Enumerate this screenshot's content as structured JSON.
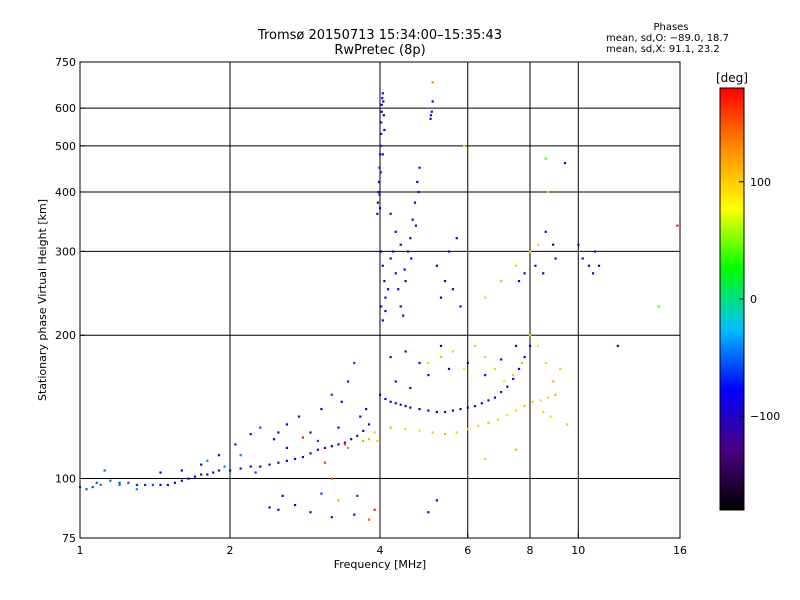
{
  "header": {
    "title_line1": "Tromsø 20150713 15:34:00–15:35:43",
    "title_line2": "RwPretec (8p)"
  },
  "phase_stats": {
    "heading": "Phases",
    "line_o": "mean, sd,O: −89.0, 18.7",
    "line_x": "mean, sd,X:  91.1, 23.2"
  },
  "colorbar": {
    "unit_label": "[deg]",
    "range": [
      -180,
      180
    ],
    "ticks": [
      {
        "value": 100,
        "label": "100"
      },
      {
        "value": 0,
        "label": "0"
      },
      {
        "value": -100,
        "label": "−100"
      }
    ],
    "colors": [
      "#000000",
      "#4b0082",
      "#0000ff",
      "#00bfff",
      "#00ff00",
      "#ffff00",
      "#ff8c00",
      "#ff0000"
    ]
  },
  "chart_data": {
    "type": "scatter",
    "xlabel": "Frequency [MHz]",
    "ylabel": "Stationary phase Virtual Height [km]",
    "xscale": "log",
    "yscale": "log",
    "xlim": [
      1,
      16
    ],
    "ylim": [
      75,
      750
    ],
    "grid": true,
    "xticks": [
      {
        "value": 1,
        "label": "1"
      },
      {
        "value": 2,
        "label": "2"
      },
      {
        "value": 4,
        "label": "4"
      },
      {
        "value": 6,
        "label": "6"
      },
      {
        "value": 8,
        "label": "8"
      },
      {
        "value": 10,
        "label": "10"
      },
      {
        "value": 16,
        "label": "16"
      }
    ],
    "yticks": [
      {
        "value": 75,
        "label": "75"
      },
      {
        "value": 100,
        "label": "100"
      },
      {
        "value": 200,
        "label": "200"
      },
      {
        "value": 300,
        "label": "300"
      },
      {
        "value": 400,
        "label": "400"
      },
      {
        "value": 500,
        "label": "500"
      },
      {
        "value": 600,
        "label": "600"
      },
      {
        "value": 750,
        "label": "750"
      }
    ],
    "grid_x": [
      2,
      4,
      6,
      8,
      10
    ],
    "grid_y": [
      100,
      200,
      300,
      400,
      500,
      600
    ],
    "points": [
      {
        "x": 1.0,
        "y": 96,
        "p": -50
      },
      {
        "x": 1.03,
        "y": 95,
        "p": -55
      },
      {
        "x": 1.06,
        "y": 96,
        "p": -60
      },
      {
        "x": 1.1,
        "y": 97,
        "p": -45
      },
      {
        "x": 1.15,
        "y": 99,
        "p": -50
      },
      {
        "x": 1.2,
        "y": 98,
        "p": -60
      },
      {
        "x": 1.25,
        "y": 98,
        "p": -55
      },
      {
        "x": 1.3,
        "y": 97,
        "p": -65
      },
      {
        "x": 1.35,
        "y": 97,
        "p": -70
      },
      {
        "x": 1.4,
        "y": 97,
        "p": -60
      },
      {
        "x": 1.45,
        "y": 97,
        "p": -80
      },
      {
        "x": 1.5,
        "y": 97,
        "p": -85
      },
      {
        "x": 1.55,
        "y": 98,
        "p": -90
      },
      {
        "x": 1.6,
        "y": 99,
        "p": -90
      },
      {
        "x": 1.65,
        "y": 100,
        "p": -95
      },
      {
        "x": 1.7,
        "y": 101,
        "p": -90
      },
      {
        "x": 1.75,
        "y": 102,
        "p": -95
      },
      {
        "x": 1.8,
        "y": 102,
        "p": -90
      },
      {
        "x": 1.85,
        "y": 103,
        "p": -90
      },
      {
        "x": 1.9,
        "y": 104,
        "p": -95
      },
      {
        "x": 2.0,
        "y": 104,
        "p": -90
      },
      {
        "x": 2.1,
        "y": 105,
        "p": -95
      },
      {
        "x": 2.2,
        "y": 106,
        "p": -90
      },
      {
        "x": 2.3,
        "y": 106,
        "p": -95
      },
      {
        "x": 2.4,
        "y": 107,
        "p": -90
      },
      {
        "x": 2.5,
        "y": 108,
        "p": -95
      },
      {
        "x": 2.6,
        "y": 109,
        "p": -90
      },
      {
        "x": 2.7,
        "y": 110,
        "p": -90
      },
      {
        "x": 2.8,
        "y": 111,
        "p": -95
      },
      {
        "x": 2.9,
        "y": 113,
        "p": -90
      },
      {
        "x": 3.0,
        "y": 115,
        "p": -95
      },
      {
        "x": 3.1,
        "y": 116,
        "p": -90
      },
      {
        "x": 3.2,
        "y": 117,
        "p": -95
      },
      {
        "x": 3.3,
        "y": 118,
        "p": -90
      },
      {
        "x": 3.4,
        "y": 119,
        "p": -90
      },
      {
        "x": 3.5,
        "y": 121,
        "p": -95
      },
      {
        "x": 3.6,
        "y": 123,
        "p": -90
      },
      {
        "x": 3.7,
        "y": 126,
        "p": -95
      },
      {
        "x": 3.8,
        "y": 130,
        "p": -90
      },
      {
        "x": 1.12,
        "y": 104,
        "p": -50
      },
      {
        "x": 1.45,
        "y": 103,
        "p": -90
      },
      {
        "x": 1.6,
        "y": 104,
        "p": -85
      },
      {
        "x": 1.75,
        "y": 107,
        "p": -90
      },
      {
        "x": 1.9,
        "y": 112,
        "p": -90
      },
      {
        "x": 2.05,
        "y": 118,
        "p": -70
      },
      {
        "x": 2.2,
        "y": 124,
        "p": -90
      },
      {
        "x": 2.3,
        "y": 128,
        "p": -60
      },
      {
        "x": 2.45,
        "y": 121,
        "p": -90
      },
      {
        "x": 2.6,
        "y": 130,
        "p": -80
      },
      {
        "x": 2.75,
        "y": 135,
        "p": -90
      },
      {
        "x": 2.9,
        "y": 125,
        "p": -110
      },
      {
        "x": 3.05,
        "y": 140,
        "p": -90
      },
      {
        "x": 3.2,
        "y": 150,
        "p": -60
      },
      {
        "x": 3.35,
        "y": 145,
        "p": -90
      },
      {
        "x": 3.45,
        "y": 160,
        "p": -70
      },
      {
        "x": 3.55,
        "y": 175,
        "p": -60
      },
      {
        "x": 3.65,
        "y": 135,
        "p": -90
      },
      {
        "x": 3.75,
        "y": 140,
        "p": -95
      },
      {
        "x": 2.4,
        "y": 87,
        "p": -90
      },
      {
        "x": 2.5,
        "y": 86,
        "p": -90
      },
      {
        "x": 2.7,
        "y": 88,
        "p": -90
      },
      {
        "x": 2.9,
        "y": 85,
        "p": -95
      },
      {
        "x": 3.2,
        "y": 83,
        "p": -90
      },
      {
        "x": 3.3,
        "y": 90,
        "p": 120
      },
      {
        "x": 3.55,
        "y": 84,
        "p": -100
      },
      {
        "x": 3.8,
        "y": 82,
        "p": 150
      },
      {
        "x": 2.55,
        "y": 92,
        "p": -90
      },
      {
        "x": 3.05,
        "y": 93,
        "p": -60
      },
      {
        "x": 3.4,
        "y": 118,
        "p": 150
      },
      {
        "x": 3.45,
        "y": 116,
        "p": 130
      },
      {
        "x": 3.7,
        "y": 120,
        "p": 120
      },
      {
        "x": 3.8,
        "y": 121,
        "p": 110
      },
      {
        "x": 3.9,
        "y": 125,
        "p": 100
      },
      {
        "x": 3.95,
        "y": 120,
        "p": 100
      },
      {
        "x": 3.1,
        "y": 108,
        "p": 160
      },
      {
        "x": 3.2,
        "y": 100,
        "p": 150
      },
      {
        "x": 3.95,
        "y": 360,
        "p": -90
      },
      {
        "x": 3.96,
        "y": 380,
        "p": -90
      },
      {
        "x": 3.97,
        "y": 400,
        "p": -95
      },
      {
        "x": 3.98,
        "y": 420,
        "p": -90
      },
      {
        "x": 3.99,
        "y": 450,
        "p": -90
      },
      {
        "x": 4.0,
        "y": 480,
        "p": -95
      },
      {
        "x": 4.01,
        "y": 500,
        "p": -90
      },
      {
        "x": 4.02,
        "y": 530,
        "p": -90
      },
      {
        "x": 4.02,
        "y": 560,
        "p": -95
      },
      {
        "x": 4.03,
        "y": 590,
        "p": -90
      },
      {
        "x": 4.03,
        "y": 610,
        "p": -90
      },
      {
        "x": 4.04,
        "y": 630,
        "p": -95
      },
      {
        "x": 4.05,
        "y": 645,
        "p": -90
      },
      {
        "x": 4.06,
        "y": 620,
        "p": -90
      },
      {
        "x": 4.07,
        "y": 580,
        "p": -90
      },
      {
        "x": 4.08,
        "y": 540,
        "p": -95
      },
      {
        "x": 4.05,
        "y": 480,
        "p": -90
      },
      {
        "x": 4.01,
        "y": 440,
        "p": -90
      },
      {
        "x": 3.99,
        "y": 395,
        "p": -95
      },
      {
        "x": 4.0,
        "y": 370,
        "p": -90
      },
      {
        "x": 4.02,
        "y": 300,
        "p": -90
      },
      {
        "x": 4.05,
        "y": 280,
        "p": -95
      },
      {
        "x": 4.08,
        "y": 260,
        "p": -90
      },
      {
        "x": 4.1,
        "y": 240,
        "p": -90
      },
      {
        "x": 4.02,
        "y": 230,
        "p": -95
      },
      {
        "x": 4.05,
        "y": 215,
        "p": -90
      },
      {
        "x": 4.1,
        "y": 225,
        "p": -90
      },
      {
        "x": 4.15,
        "y": 250,
        "p": -95
      },
      {
        "x": 4.2,
        "y": 290,
        "p": -90
      },
      {
        "x": 4.25,
        "y": 300,
        "p": -90
      },
      {
        "x": 4.3,
        "y": 270,
        "p": -95
      },
      {
        "x": 4.35,
        "y": 250,
        "p": -90
      },
      {
        "x": 4.4,
        "y": 230,
        "p": -90
      },
      {
        "x": 4.45,
        "y": 220,
        "p": -95
      },
      {
        "x": 4.5,
        "y": 260,
        "p": -90
      },
      {
        "x": 4.55,
        "y": 300,
        "p": -90
      },
      {
        "x": 4.6,
        "y": 320,
        "p": -95
      },
      {
        "x": 4.65,
        "y": 350,
        "p": -90
      },
      {
        "x": 4.7,
        "y": 380,
        "p": -90
      },
      {
        "x": 4.75,
        "y": 420,
        "p": -95
      },
      {
        "x": 4.8,
        "y": 450,
        "p": -90
      },
      {
        "x": 4.78,
        "y": 400,
        "p": -90
      },
      {
        "x": 4.72,
        "y": 340,
        "p": -95
      },
      {
        "x": 4.62,
        "y": 290,
        "p": -90
      },
      {
        "x": 4.48,
        "y": 275,
        "p": -90
      },
      {
        "x": 4.3,
        "y": 330,
        "p": -95
      },
      {
        "x": 4.2,
        "y": 360,
        "p": -90
      },
      {
        "x": 4.4,
        "y": 310,
        "p": -90
      },
      {
        "x": 5.05,
        "y": 570,
        "p": -90
      },
      {
        "x": 5.08,
        "y": 590,
        "p": -95
      },
      {
        "x": 5.1,
        "y": 620,
        "p": -90
      },
      {
        "x": 5.06,
        "y": 580,
        "p": -90
      },
      {
        "x": 5.2,
        "y": 280,
        "p": -90
      },
      {
        "x": 5.3,
        "y": 240,
        "p": -95
      },
      {
        "x": 5.4,
        "y": 260,
        "p": -90
      },
      {
        "x": 5.6,
        "y": 250,
        "p": -90
      },
      {
        "x": 5.8,
        "y": 230,
        "p": -95
      },
      {
        "x": 5.5,
        "y": 300,
        "p": -90
      },
      {
        "x": 5.7,
        "y": 320,
        "p": -90
      },
      {
        "x": 4.0,
        "y": 150,
        "p": -90
      },
      {
        "x": 4.1,
        "y": 147,
        "p": -95
      },
      {
        "x": 4.2,
        "y": 145,
        "p": -90
      },
      {
        "x": 4.3,
        "y": 144,
        "p": -90
      },
      {
        "x": 4.4,
        "y": 143,
        "p": -95
      },
      {
        "x": 4.5,
        "y": 142,
        "p": -90
      },
      {
        "x": 4.6,
        "y": 141,
        "p": -90
      },
      {
        "x": 4.8,
        "y": 140,
        "p": -95
      },
      {
        "x": 5.0,
        "y": 139,
        "p": -90
      },
      {
        "x": 5.2,
        "y": 138,
        "p": -90
      },
      {
        "x": 5.4,
        "y": 138,
        "p": -95
      },
      {
        "x": 5.6,
        "y": 139,
        "p": -90
      },
      {
        "x": 5.8,
        "y": 140,
        "p": -90
      },
      {
        "x": 6.0,
        "y": 141,
        "p": -95
      },
      {
        "x": 6.2,
        "y": 142,
        "p": -90
      },
      {
        "x": 6.4,
        "y": 144,
        "p": -90
      },
      {
        "x": 6.6,
        "y": 146,
        "p": -95
      },
      {
        "x": 6.8,
        "y": 148,
        "p": -90
      },
      {
        "x": 7.0,
        "y": 152,
        "p": -90
      },
      {
        "x": 7.2,
        "y": 156,
        "p": -95
      },
      {
        "x": 7.4,
        "y": 162,
        "p": -90
      },
      {
        "x": 7.6,
        "y": 170,
        "p": -90
      },
      {
        "x": 7.8,
        "y": 180,
        "p": -95
      },
      {
        "x": 8.0,
        "y": 190,
        "p": -90
      },
      {
        "x": 4.3,
        "y": 160,
        "p": -90
      },
      {
        "x": 4.6,
        "y": 155,
        "p": -95
      },
      {
        "x": 5.0,
        "y": 165,
        "p": -90
      },
      {
        "x": 5.5,
        "y": 170,
        "p": -90
      },
      {
        "x": 6.0,
        "y": 175,
        "p": -95
      },
      {
        "x": 6.5,
        "y": 165,
        "p": -90
      },
      {
        "x": 7.0,
        "y": 178,
        "p": -90
      },
      {
        "x": 7.5,
        "y": 190,
        "p": -95
      },
      {
        "x": 4.2,
        "y": 180,
        "p": -90
      },
      {
        "x": 4.5,
        "y": 185,
        "p": -90
      },
      {
        "x": 4.8,
        "y": 175,
        "p": -95
      },
      {
        "x": 5.3,
        "y": 190,
        "p": -90
      },
      {
        "x": 4.2,
        "y": 128,
        "p": 110
      },
      {
        "x": 4.5,
        "y": 127,
        "p": 100
      },
      {
        "x": 4.8,
        "y": 126,
        "p": 90
      },
      {
        "x": 5.1,
        "y": 125,
        "p": 100
      },
      {
        "x": 5.4,
        "y": 124,
        "p": 110
      },
      {
        "x": 5.7,
        "y": 125,
        "p": 100
      },
      {
        "x": 6.0,
        "y": 127,
        "p": 90
      },
      {
        "x": 6.3,
        "y": 129,
        "p": 100
      },
      {
        "x": 6.6,
        "y": 131,
        "p": 110
      },
      {
        "x": 6.9,
        "y": 133,
        "p": 100
      },
      {
        "x": 7.2,
        "y": 136,
        "p": 90
      },
      {
        "x": 7.5,
        "y": 139,
        "p": 100
      },
      {
        "x": 7.8,
        "y": 142,
        "p": 110
      },
      {
        "x": 8.1,
        "y": 145,
        "p": 100
      },
      {
        "x": 8.4,
        "y": 146,
        "p": 90
      },
      {
        "x": 8.7,
        "y": 148,
        "p": 100
      },
      {
        "x": 9.0,
        "y": 150,
        "p": 110
      },
      {
        "x": 8.5,
        "y": 138,
        "p": 100
      },
      {
        "x": 8.8,
        "y": 135,
        "p": 90
      },
      {
        "x": 5.0,
        "y": 175,
        "p": 100
      },
      {
        "x": 5.3,
        "y": 180,
        "p": 110
      },
      {
        "x": 5.6,
        "y": 185,
        "p": 100
      },
      {
        "x": 5.9,
        "y": 170,
        "p": 90
      },
      {
        "x": 6.2,
        "y": 190,
        "p": 100
      },
      {
        "x": 6.5,
        "y": 180,
        "p": 110
      },
      {
        "x": 6.8,
        "y": 170,
        "p": 100
      },
      {
        "x": 7.1,
        "y": 160,
        "p": 90
      },
      {
        "x": 7.4,
        "y": 165,
        "p": 100
      },
      {
        "x": 7.7,
        "y": 175,
        "p": 110
      },
      {
        "x": 8.0,
        "y": 200,
        "p": 100
      },
      {
        "x": 8.3,
        "y": 190,
        "p": 90
      },
      {
        "x": 8.6,
        "y": 175,
        "p": 100
      },
      {
        "x": 8.9,
        "y": 160,
        "p": 110
      },
      {
        "x": 9.2,
        "y": 170,
        "p": 100
      },
      {
        "x": 6.5,
        "y": 240,
        "p": 100
      },
      {
        "x": 7.0,
        "y": 260,
        "p": 110
      },
      {
        "x": 7.5,
        "y": 280,
        "p": 100
      },
      {
        "x": 8.0,
        "y": 300,
        "p": 90
      },
      {
        "x": 8.3,
        "y": 310,
        "p": 100
      },
      {
        "x": 8.6,
        "y": 330,
        "p": -90
      },
      {
        "x": 8.9,
        "y": 310,
        "p": -95
      },
      {
        "x": 9.0,
        "y": 290,
        "p": -90
      },
      {
        "x": 7.8,
        "y": 270,
        "p": -90
      },
      {
        "x": 7.6,
        "y": 260,
        "p": -95
      },
      {
        "x": 8.2,
        "y": 280,
        "p": -90
      },
      {
        "x": 8.5,
        "y": 270,
        "p": -90
      },
      {
        "x": 10.2,
        "y": 290,
        "p": -90
      },
      {
        "x": 10.5,
        "y": 280,
        "p": -95
      },
      {
        "x": 10.8,
        "y": 300,
        "p": -90
      },
      {
        "x": 11.0,
        "y": 280,
        "p": -90
      },
      {
        "x": 10.0,
        "y": 310,
        "p": -90
      },
      {
        "x": 10.7,
        "y": 270,
        "p": -95
      },
      {
        "x": 8.6,
        "y": 470,
        "p": 40
      },
      {
        "x": 8.7,
        "y": 400,
        "p": 100
      },
      {
        "x": 9.4,
        "y": 460,
        "p": -90
      },
      {
        "x": 5.1,
        "y": 680,
        "p": 130
      },
      {
        "x": 5.9,
        "y": 500,
        "p": 60
      },
      {
        "x": 12.0,
        "y": 190,
        "p": -100
      },
      {
        "x": 14.5,
        "y": 230,
        "p": 40
      },
      {
        "x": 15.8,
        "y": 340,
        "p": 180
      },
      {
        "x": 5.0,
        "y": 85,
        "p": -90
      },
      {
        "x": 5.2,
        "y": 90,
        "p": -90
      },
      {
        "x": 3.9,
        "y": 86,
        "p": 170
      },
      {
        "x": 3.6,
        "y": 92,
        "p": -60
      },
      {
        "x": 2.5,
        "y": 125,
        "p": -90
      },
      {
        "x": 2.6,
        "y": 116,
        "p": -90
      },
      {
        "x": 2.8,
        "y": 122,
        "p": 170
      },
      {
        "x": 3.0,
        "y": 120,
        "p": -60
      },
      {
        "x": 3.3,
        "y": 128,
        "p": -90
      },
      {
        "x": 6.5,
        "y": 110,
        "p": 100
      },
      {
        "x": 7.5,
        "y": 115,
        "p": 110
      },
      {
        "x": 9.5,
        "y": 130,
        "p": 100
      },
      {
        "x": 1.3,
        "y": 95,
        "p": -40
      },
      {
        "x": 1.2,
        "y": 97,
        "p": -45
      },
      {
        "x": 1.08,
        "y": 98,
        "p": -55
      },
      {
        "x": 1.8,
        "y": 109,
        "p": -40
      },
      {
        "x": 2.1,
        "y": 112,
        "p": -45
      },
      {
        "x": 2.25,
        "y": 103,
        "p": -60
      },
      {
        "x": 1.95,
        "y": 106,
        "p": -40
      }
    ]
  }
}
